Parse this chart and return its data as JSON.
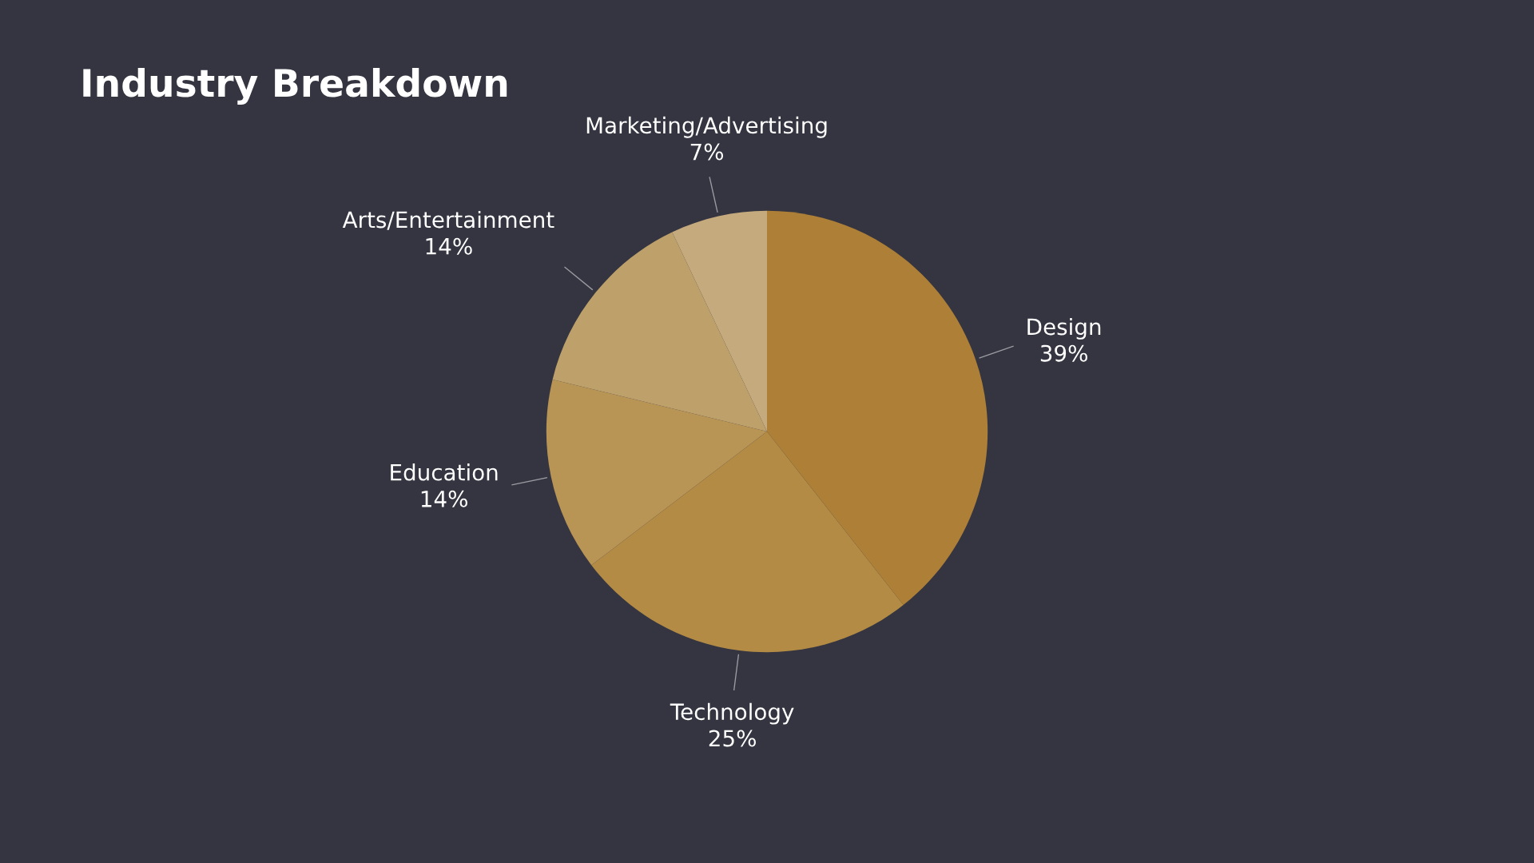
{
  "chart_data": {
    "type": "pie",
    "title": "Industry Breakdown",
    "categories": [
      "Design",
      "Technology",
      "Education",
      "Arts/Entertainment",
      "Marketing/Advertising"
    ],
    "values": [
      39,
      25,
      14,
      14,
      7
    ],
    "value_labels": [
      "39%",
      "25%",
      "14%",
      "14%",
      "7%"
    ],
    "colors": [
      "#ad7f37",
      "#b38b45",
      "#b89455",
      "#bea06a",
      "#c4aa7d"
    ],
    "legend": false
  }
}
